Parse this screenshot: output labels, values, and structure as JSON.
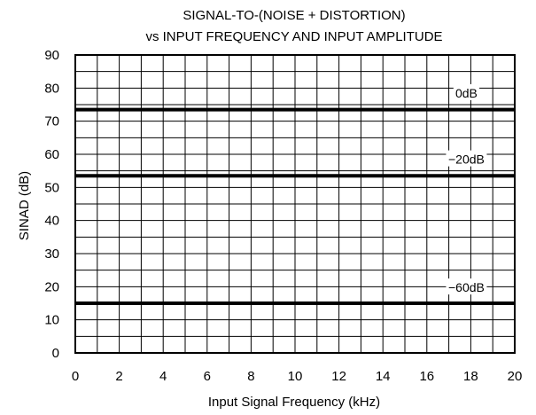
{
  "chart_data": {
    "type": "line",
    "title": [
      "SIGNAL-TO-(NOISE + DISTORTION)",
      "vs INPUT FREQUENCY AND INPUT AMPLITUDE"
    ],
    "xlabel": "Input Signal Frequency (kHz)",
    "ylabel": "SINAD (dB)",
    "xlim": [
      0,
      20
    ],
    "ylim": [
      0,
      90
    ],
    "xticks": [
      0,
      2,
      4,
      6,
      8,
      10,
      12,
      14,
      16,
      18,
      20
    ],
    "yticks": [
      0,
      10,
      20,
      30,
      40,
      50,
      60,
      70,
      80,
      90
    ],
    "x_minor_step": 1,
    "y_minor_step": 5,
    "grid": true,
    "series": [
      {
        "name": "0dB",
        "x": [
          0,
          20
        ],
        "y": [
          73.5,
          73.5
        ],
        "label_x": 17.8,
        "label_y": 78.5
      },
      {
        "name": "−20dB",
        "x": [
          0,
          20
        ],
        "y": [
          53.5,
          53.5
        ],
        "label_x": 17.8,
        "label_y": 58.5
      },
      {
        "name": "−60dB",
        "x": [
          0,
          20
        ],
        "y": [
          15,
          15
        ],
        "label_x": 17.8,
        "label_y": 19.8
      }
    ],
    "colors": {
      "series": "#000000",
      "grid": "#000000",
      "label_bg": "#ffffff"
    }
  }
}
